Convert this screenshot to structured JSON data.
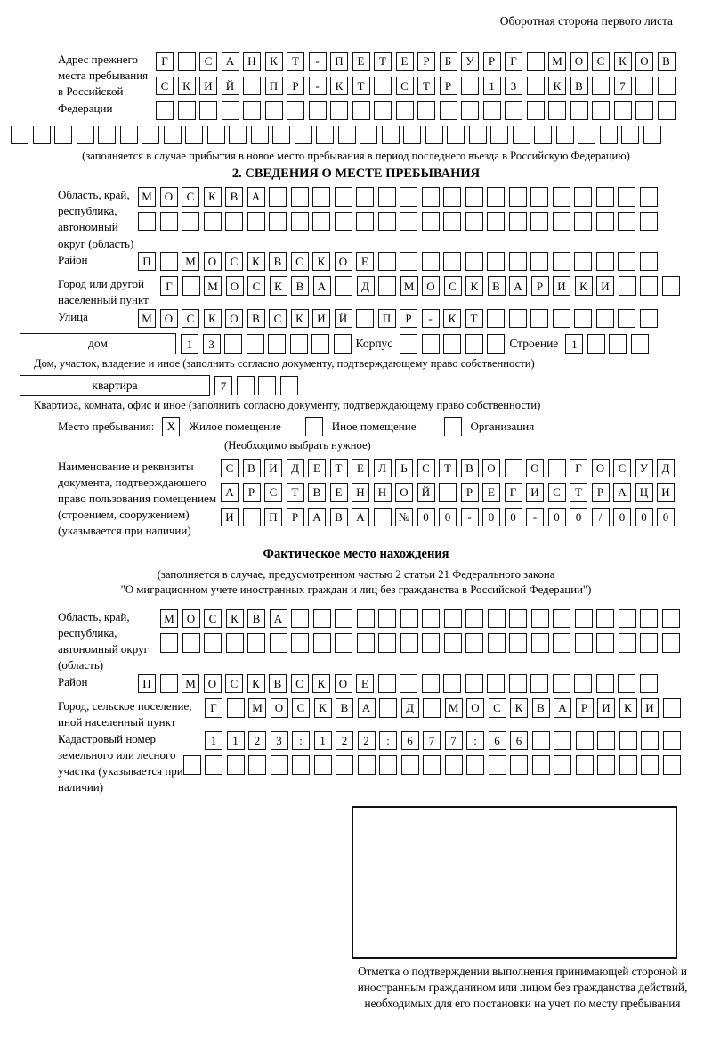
{
  "page": {
    "corner_note": "Оборотная сторона первого листа"
  },
  "prev_address": {
    "label": "Адрес прежнего места пребывания в Российской Федерации",
    "rows": [
      {
        "chars": "Г САНКТ-ПЕТЕРБУРГ МОСКОВ",
        "len": 24
      },
      {
        "chars": "СКИЙ ПР-КТ СТР 13 КВ 7",
        "len": 24
      },
      {
        "chars": "",
        "len": 24
      }
    ],
    "extra_row": {
      "chars": "",
      "len": 30
    },
    "caption": "(заполняется в случае прибытия в новое место пребывания в период последнего въезда в Российскую Федерацию)"
  },
  "section2": {
    "title": "2. СВЕДЕНИЯ О МЕСТЕ ПРЕБЫВАНИЯ",
    "region": {
      "label": "Область, край, республика, автономный округ (область)",
      "rows": [
        {
          "chars": "МОСКВА",
          "len": 24
        },
        {
          "chars": "",
          "len": 24
        }
      ]
    },
    "district": {
      "label": "Район",
      "row": {
        "chars": "П МОСКВСКОЕ",
        "len": 24
      }
    },
    "city": {
      "label": "Город или другой населенный пункт",
      "row": {
        "chars": "Г МОСКВА Д МОСКВАРИКИ",
        "len": 24
      }
    },
    "street": {
      "label": "Улица",
      "row": {
        "chars": "МОСКОВСКИЙ ПР-КТ",
        "len": 24
      }
    },
    "house": {
      "box_label": "дом",
      "number_row": {
        "chars": "13",
        "len": 8
      },
      "korpus_label": "Корпус",
      "korpus_row": {
        "chars": "",
        "len": 5
      },
      "stroenie_label": "Строение",
      "stroenie_row": {
        "chars": "1",
        "len": 4
      },
      "caption": "Дом, участок, владение и иное (заполнить согласно документу, подтверждающему право собственности)"
    },
    "apartment": {
      "box_label": "квартира",
      "number_row": {
        "chars": "7",
        "len": 4
      },
      "caption": "Квартира, комната, офис и иное (заполнить согласно документу, подтверждающему право собственности)"
    },
    "stay_type": {
      "label": "Место пребывания:",
      "options": [
        {
          "label": "Жилое помещение",
          "checked": "X"
        },
        {
          "label": "Иное помещение",
          "checked": ""
        },
        {
          "label": "Организация",
          "checked": ""
        }
      ],
      "caption": "(Необходимо выбрать нужное)"
    },
    "document": {
      "label": "Наименование и реквизиты документа, подтверждающего право пользования помещением (строением, сооружением) (указывается при наличии)",
      "rows": [
        {
          "chars": "СВИДЕТЕЛЬСТВО О ГОСУД",
          "len": 21
        },
        {
          "chars": "АРСТВЕННОЙ РЕГИСТРАЦИ",
          "len": 21
        },
        {
          "chars": "И ПРАВА №00-00-00/000",
          "len": 21
        }
      ]
    }
  },
  "actual_location": {
    "title": "Фактическое место нахождения",
    "caption_line1": "(заполняется в случае, предусмотренном частью 2 статьи 21 Федерального закона",
    "caption_line2": "\"О миграционном учете иностранных граждан и лиц без гражданства в Российской Федерации\")",
    "region": {
      "label": "Область, край, республика, автономный округ (область)",
      "rows": [
        {
          "chars": "МОСКВА",
          "len": 24
        },
        {
          "chars": "",
          "len": 24
        }
      ]
    },
    "district": {
      "label": "Район",
      "row": {
        "chars": "П МОСКВСКОЕ",
        "len": 24
      }
    },
    "city": {
      "label": "Город, сельское поселение, иной населенный пункт",
      "row": {
        "chars": "Г МОСКВА Д МОСКВАРИКИ",
        "len": 22
      }
    },
    "cadastre": {
      "label": "Кадастровый номер земельного или лесного участка (указывается при наличии)",
      "rows": [
        {
          "chars": "1123:122:677:66",
          "len": 22
        },
        {
          "chars": "",
          "len": 23
        }
      ]
    }
  },
  "stamp": {
    "caption": "Отметка о подтверждении выполнения принимающей стороной и иностранным гражданином или лицом без гражданства действий, необходимых для его постановки на учет по месту пребывания"
  }
}
